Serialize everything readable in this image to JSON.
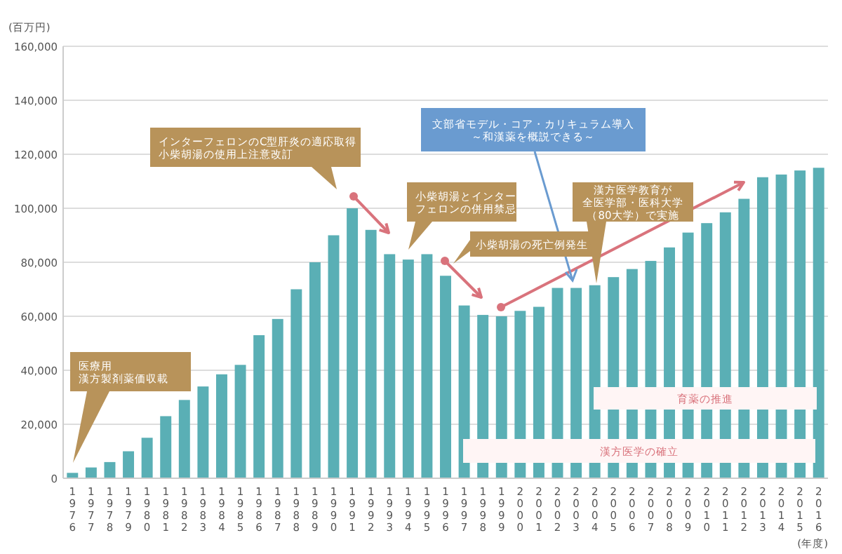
{
  "chart_data": {
    "type": "bar",
    "ylabel": "(百万円)",
    "xlabel": "(年度)",
    "categories": [
      "1976",
      "1977",
      "1978",
      "1979",
      "1980",
      "1981",
      "1982",
      "1983",
      "1984",
      "1985",
      "1986",
      "1987",
      "1988",
      "1989",
      "1990",
      "1991",
      "1992",
      "1993",
      "1994",
      "1995",
      "1996",
      "1997",
      "1998",
      "1999",
      "2000",
      "2001",
      "2002",
      "2003",
      "2004",
      "2005",
      "2006",
      "2007",
      "2008",
      "2009",
      "2010",
      "2011",
      "2012",
      "2013",
      "2014",
      "2015",
      "2016"
    ],
    "values": [
      2000,
      4000,
      6000,
      10000,
      15000,
      23000,
      29000,
      34000,
      38500,
      42000,
      53000,
      59000,
      70000,
      80000,
      90000,
      100000,
      92000,
      83000,
      81000,
      83000,
      75000,
      64000,
      60500,
      60000,
      62000,
      63500,
      70500,
      70500,
      71500,
      74500,
      77500,
      80500,
      85500,
      91000,
      94500,
      98500,
      103500,
      111500,
      112500,
      114000,
      115000
    ],
    "color": "#5aafb5",
    "ylim": [
      0,
      160000
    ],
    "yticks": [
      0,
      {
        "value": 20000,
        "label": "20,000"
      },
      {
        "value": 40000,
        "label": "40,000"
      },
      {
        "value": 60000,
        "label": "60,000"
      },
      {
        "value": 80000,
        "label": "80,000"
      },
      {
        "value": 100000,
        "label": "100,000"
      },
      {
        "value": 120000,
        "label": "120,000"
      },
      {
        "value": 140000,
        "label": "140,000"
      },
      {
        "value": 160000,
        "label": "160,000"
      }
    ],
    "grid": "y",
    "annotations": [
      "医療用漢方製剤薬価収載",
      "インターフェロンのC型肝炎の適応取得小柴胡湯の使用上注意改訂",
      "小柴胡湯とインターフェロンの併用禁忌",
      "小柴胡湯の死亡例発生",
      "文部省モデル・コア・カリキュラム導入～和漢薬を概説できる～",
      "漢方医学教育が全医学部・医科大学（80大学）で実施",
      "育薬の推進",
      "漢方医学の確立"
    ]
  }
}
